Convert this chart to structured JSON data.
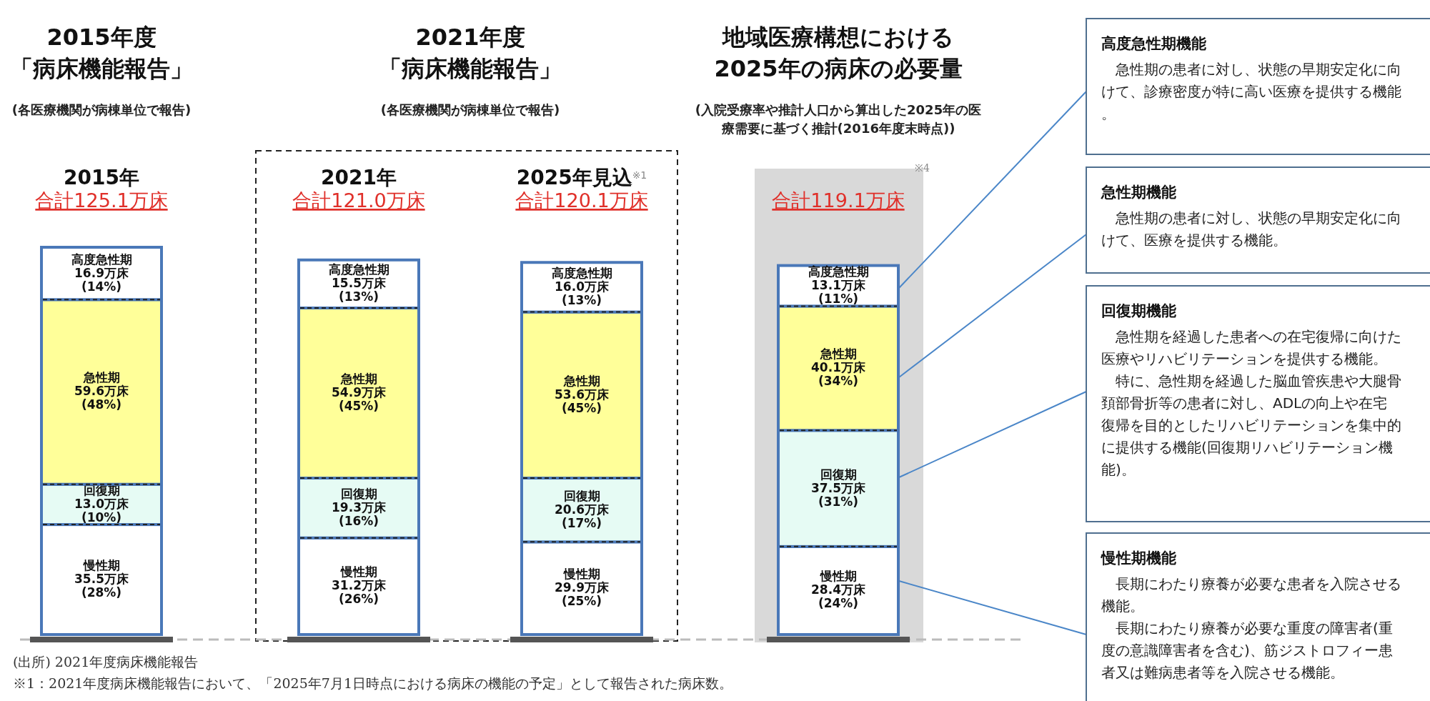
{
  "chart_data": {
    "type": "bar",
    "stacked": true,
    "categories": [
      "2015年",
      "2021年",
      "2025年見込$^{※1}$",
      null
    ],
    "totals": [
      "合計125.1万床",
      "合計121.0万床",
      "合計120.1万床",
      "合計119.1万床"
    ],
    "series": [
      {
        "name": "慢性期",
        "color": "#ffffff",
        "values": [
          35.5,
          31.2,
          29.9,
          28.4
        ],
        "value_labels": [
          "35.5万床\n(28%)",
          "31.2万床\n(26%)",
          "29.9万床\n(25%)",
          "28.4万床\n(24%)"
        ]
      },
      {
        "name": "回復期",
        "color": "#e6fbf4",
        "values": [
          13.0,
          19.3,
          20.6,
          37.5
        ],
        "value_labels": [
          "13.0万床\n(10%)",
          "19.3万床\n(16%)",
          "20.6万床\n(17%)",
          "37.5万床\n(31%)"
        ]
      },
      {
        "name": "急性期",
        "color": "#ffff99",
        "values": [
          59.6,
          54.9,
          53.6,
          40.1
        ],
        "value_labels": [
          "59.6万床\n(48%)",
          "54.9万床\n(45%)",
          "53.6万床\n(45%)",
          "40.1万床\n(34%)"
        ]
      },
      {
        "name": "高度急性期",
        "color": "#ffffff",
        "values": [
          16.9,
          15.5,
          16.0,
          13.1
        ],
        "value_labels": [
          "16.9万床\n(14%)",
          "15.5万床\n(13%)",
          "16.0万床\n(13%)",
          "13.1万床\n(11%)"
        ]
      }
    ],
    "annotations": [
      "2015年度",
      "「病床機能報告」",
      "(各医療機関が病棟単位で報告)",
      "2021年度",
      "「病床機能報告」",
      "(各医療機関が病棟単位で報告)",
      "地域医療構想における",
      "2025年の病床の必要量",
      "(入院受療率や推計人口から算出した2025年の医療需要に基づく推計(2016年度末時点))",
      "高度急性期機能",
      "　急性期の患者に対し、状態の早期安定化に向けて、診療密度が特に高い医療を提供する機能。",
      "急性期機能",
      "　急性期の患者に対し、状態の早期安定化に向けて、医療を提供する機能。",
      "回復期機能",
      "　急性期を経過した患者への在宅復帰に向けた医療やリハビリテーションを提供する機能。",
      "　特に、急性期を経過した脳血管疾患や大腿骨頚部骨折等の患者に対し、ADLの向上や在宅復帰を目的としたリハビリテーションを集中的に提供する機能(回復期リハビリテーション機能)。",
      "慢性期機能",
      "　長期にわたり療養が必要な患者を入院させる機能。",
      "　長期にわたり療養が必要な重度の障害者(重度の意識障害者を含む)、筋ジストロフィー患者又は難病患者等を入院させる機能。",
      "(出所) 2021年度病床機能報告",
      "※1：2021年度病床機能報告において、「2025年7月1日時点における病床の機能の予定」として報告された病床数。",
      "※4"
    ]
  }
}
